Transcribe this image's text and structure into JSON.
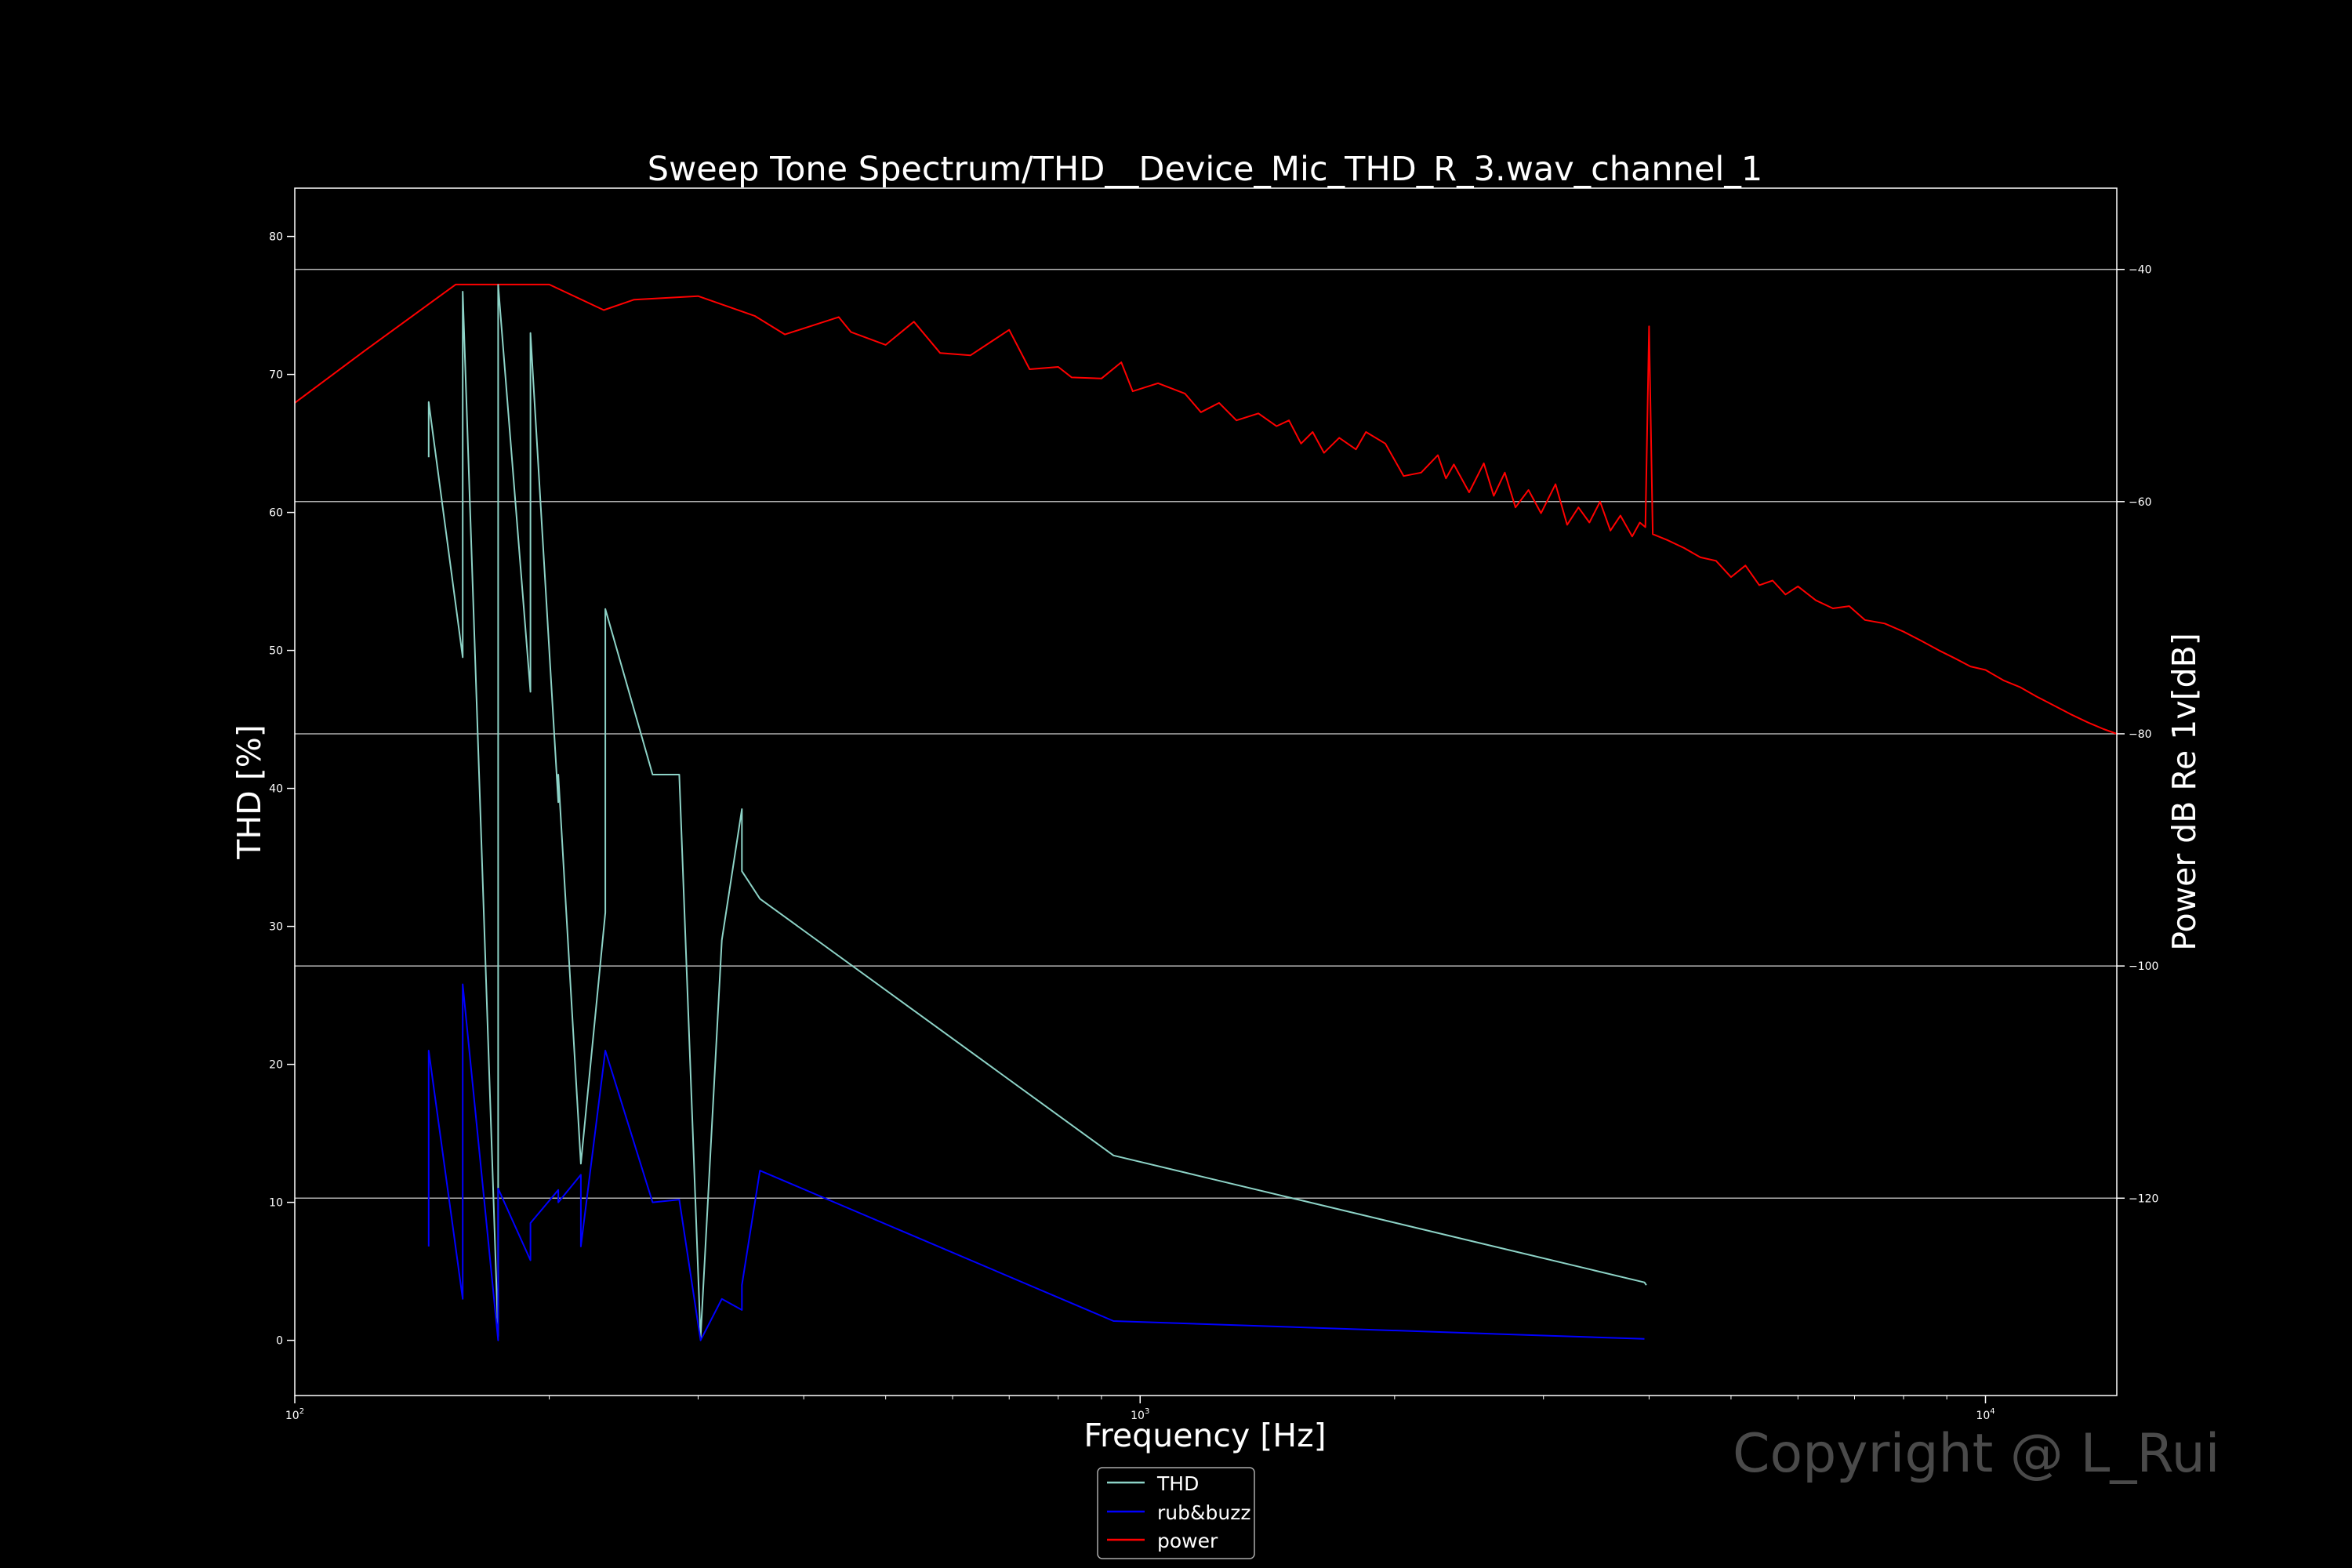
{
  "watermark": "Copyright @ L_Rui",
  "chart_data": {
    "type": "line",
    "title": "Sweep Tone Spectrum/THD__Device_Mic_THD_R_3.wav_channel_1",
    "xlabel": "Frequency [Hz]",
    "ylabel": "THD [%]",
    "ylabel_right": "Power dB Re 1v[dB]",
    "xscale": "log",
    "xlim": [
      100,
      14300
    ],
    "ylim": [
      -4,
      83.5
    ],
    "ylim_right": [
      -137,
      -33
    ],
    "x_ticks": [
      {
        "value": 100,
        "base": "10",
        "exp": "2"
      },
      {
        "value": 1000,
        "base": "10",
        "exp": "3"
      },
      {
        "value": 10000,
        "base": "10",
        "exp": "4"
      }
    ],
    "y_ticks": [
      "0",
      "10",
      "20",
      "30",
      "40",
      "50",
      "60",
      "70",
      "80"
    ],
    "y_ticks_right": [
      "-40",
      "-60",
      "-80",
      "-100",
      "-120"
    ],
    "grid": "right-axis horizontal",
    "legend_position": "bottom-center",
    "series": [
      {
        "name": "THD",
        "axis": "left",
        "color": "#8dd3c7",
        "points": [
          [
            144,
            64
          ],
          [
            144,
            68
          ],
          [
            158,
            49.5
          ],
          [
            158,
            76
          ],
          [
            174,
            0.3
          ],
          [
            174,
            76.5
          ],
          [
            190,
            47
          ],
          [
            190,
            73
          ],
          [
            205,
            39
          ],
          [
            205,
            41
          ],
          [
            218,
            12.8
          ],
          [
            233,
            31
          ],
          [
            233,
            53
          ],
          [
            265,
            41
          ],
          [
            285,
            41
          ],
          [
            302,
            0.2
          ],
          [
            320,
            29
          ],
          [
            338,
            38.5
          ],
          [
            338,
            34
          ],
          [
            355,
            32
          ],
          [
            930,
            13.4
          ],
          [
            3950,
            4.2
          ],
          [
            3970,
            4
          ]
        ]
      },
      {
        "name": "rub&buzz",
        "axis": "left",
        "color": "#0000ff",
        "points": [
          [
            144,
            6.8
          ],
          [
            144,
            21
          ],
          [
            158,
            3
          ],
          [
            158,
            25.8
          ],
          [
            174,
            0
          ],
          [
            174,
            11
          ],
          [
            190,
            5.8
          ],
          [
            190,
            8.5
          ],
          [
            205,
            10.9
          ],
          [
            205,
            10
          ],
          [
            218,
            12
          ],
          [
            218,
            6.8
          ],
          [
            233,
            21
          ],
          [
            265,
            10
          ],
          [
            285,
            10.2
          ],
          [
            302,
            0
          ],
          [
            320,
            3
          ],
          [
            338,
            2.2
          ],
          [
            338,
            4
          ],
          [
            355,
            12.3
          ],
          [
            930,
            1.4
          ],
          [
            3950,
            0.1
          ]
        ]
      },
      {
        "name": "power",
        "axis": "right",
        "color": "#ff0000",
        "points": [
          [
            100,
            -51.5
          ],
          [
            121,
            -47
          ],
          [
            155,
            -41.3
          ],
          [
            200,
            -41.3
          ],
          [
            232,
            -43.5
          ],
          [
            252,
            -42.6
          ],
          [
            300,
            -42.3
          ],
          [
            350,
            -44
          ],
          [
            380,
            -45.6
          ],
          [
            440,
            -44.1
          ],
          [
            455,
            -45.4
          ],
          [
            500,
            -46.5
          ],
          [
            540,
            -44.5
          ],
          [
            580,
            -47.2
          ],
          [
            630,
            -47.4
          ],
          [
            700,
            -45.2
          ],
          [
            740,
            -48.6
          ],
          [
            800,
            -48.4
          ],
          [
            830,
            -49.3
          ],
          [
            900,
            -49.4
          ],
          [
            950,
            -48
          ],
          [
            980,
            -50.5
          ],
          [
            1050,
            -49.8
          ],
          [
            1130,
            -50.7
          ],
          [
            1180,
            -52.3
          ],
          [
            1240,
            -51.5
          ],
          [
            1300,
            -53
          ],
          [
            1380,
            -52.4
          ],
          [
            1450,
            -53.5
          ],
          [
            1500,
            -53
          ],
          [
            1550,
            -55
          ],
          [
            1600,
            -54
          ],
          [
            1650,
            -55.8
          ],
          [
            1720,
            -54.5
          ],
          [
            1800,
            -55.5
          ],
          [
            1850,
            -54
          ],
          [
            1950,
            -55
          ],
          [
            2050,
            -57.8
          ],
          [
            2150,
            -57.5
          ],
          [
            2250,
            -56
          ],
          [
            2300,
            -58
          ],
          [
            2350,
            -56.8
          ],
          [
            2450,
            -59.2
          ],
          [
            2550,
            -56.7
          ],
          [
            2620,
            -59.5
          ],
          [
            2700,
            -57.5
          ],
          [
            2780,
            -60.5
          ],
          [
            2880,
            -59
          ],
          [
            2980,
            -61
          ],
          [
            3100,
            -58.5
          ],
          [
            3200,
            -62
          ],
          [
            3300,
            -60.5
          ],
          [
            3400,
            -61.8
          ],
          [
            3500,
            -60
          ],
          [
            3600,
            -62.5
          ],
          [
            3700,
            -61.2
          ],
          [
            3820,
            -63
          ],
          [
            3900,
            -61.8
          ],
          [
            3960,
            -62.2
          ],
          [
            4000,
            -44.9
          ],
          [
            4040,
            -62.8
          ],
          [
            4200,
            -63.3
          ],
          [
            4400,
            -64
          ],
          [
            4600,
            -64.8
          ],
          [
            4800,
            -65.1
          ],
          [
            5000,
            -66.5
          ],
          [
            5200,
            -65.5
          ],
          [
            5400,
            -67.2
          ],
          [
            5600,
            -66.8
          ],
          [
            5800,
            -68
          ],
          [
            6000,
            -67.3
          ],
          [
            6300,
            -68.5
          ],
          [
            6600,
            -69.2
          ],
          [
            6900,
            -69
          ],
          [
            7200,
            -70.2
          ],
          [
            7600,
            -70.5
          ],
          [
            8000,
            -71.2
          ],
          [
            8400,
            -72
          ],
          [
            8800,
            -72.8
          ],
          [
            9200,
            -73.5
          ],
          [
            9600,
            -74.2
          ],
          [
            10000,
            -74.5
          ],
          [
            10500,
            -75.4
          ],
          [
            11000,
            -76
          ],
          [
            11500,
            -76.8
          ],
          [
            12000,
            -77.5
          ],
          [
            12600,
            -78.3
          ],
          [
            13200,
            -79
          ],
          [
            13800,
            -79.6
          ],
          [
            14300,
            -80
          ]
        ]
      }
    ]
  }
}
